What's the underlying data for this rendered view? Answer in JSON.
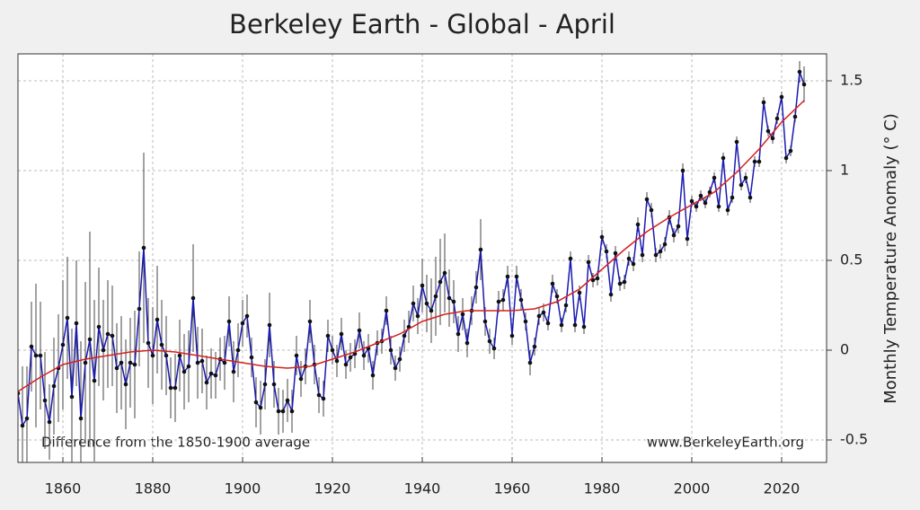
{
  "chart_data": {
    "type": "line",
    "title": "Berkeley Earth - Global - April",
    "y_label": "Monthly Temperature Anomaly (° C)",
    "annotations": [
      "Difference from the 1850-1900 average",
      "www.BerkeleyEarth.org"
    ],
    "xlim": [
      1850,
      2030
    ],
    "ylim": [
      -0.625,
      1.65
    ],
    "xticks": [
      1860,
      1880,
      1900,
      1920,
      1940,
      1960,
      1980,
      2000,
      2020
    ],
    "yticks": [
      -0.5,
      0,
      0.5,
      1,
      1.5
    ],
    "grid": true,
    "series": [
      {
        "color": "#1a1ab0",
        "x": [
          1850,
          1851,
          1852,
          1853,
          1854,
          1855,
          1856,
          1857,
          1858,
          1859,
          1860,
          1861,
          1862,
          1863,
          1864,
          1865,
          1866,
          1867,
          1868,
          1869,
          1870,
          1871,
          1872,
          1873,
          1874,
          1875,
          1876,
          1877,
          1878,
          1879,
          1880,
          1881,
          1882,
          1883,
          1884,
          1885,
          1886,
          1887,
          1888,
          1889,
          1890,
          1891,
          1892,
          1893,
          1894,
          1895,
          1896,
          1897,
          1898,
          1899,
          1900,
          1901,
          1902,
          1903,
          1904,
          1905,
          1906,
          1907,
          1908,
          1909,
          1910,
          1911,
          1912,
          1913,
          1914,
          1915,
          1916,
          1917,
          1918,
          1919,
          1920,
          1921,
          1922,
          1923,
          1924,
          1925,
          1926,
          1927,
          1928,
          1929,
          1930,
          1931,
          1932,
          1933,
          1934,
          1935,
          1936,
          1937,
          1938,
          1939,
          1940,
          1941,
          1942,
          1943,
          1944,
          1945,
          1946,
          1947,
          1948,
          1949,
          1950,
          1951,
          1952,
          1953,
          1954,
          1955,
          1956,
          1957,
          1958,
          1959,
          1960,
          1961,
          1962,
          1963,
          1964,
          1965,
          1966,
          1967,
          1968,
          1969,
          1970,
          1971,
          1972,
          1973,
          1974,
          1975,
          1976,
          1977,
          1978,
          1979,
          1980,
          1981,
          1982,
          1983,
          1984,
          1985,
          1986,
          1987,
          1988,
          1989,
          1990,
          1991,
          1992,
          1993,
          1994,
          1995,
          1996,
          1997,
          1998,
          1999,
          2000,
          2001,
          2002,
          2003,
          2004,
          2005,
          2006,
          2007,
          2008,
          2009,
          2010,
          2011,
          2012,
          2013,
          2014,
          2015,
          2016,
          2017,
          2018,
          2019,
          2020,
          2021,
          2022,
          2023,
          2024,
          2025
        ],
        "values": [
          -0.24,
          -0.42,
          -0.38,
          0.02,
          -0.03,
          -0.03,
          -0.28,
          -0.4,
          -0.2,
          -0.1,
          0.03,
          0.18,
          -0.26,
          0.15,
          -0.38,
          -0.07,
          0.06,
          -0.17,
          0.13,
          0.0,
          0.09,
          0.08,
          -0.1,
          -0.07,
          -0.19,
          -0.07,
          -0.08,
          0.23,
          0.57,
          0.04,
          -0.03,
          0.17,
          0.03,
          -0.03,
          -0.21,
          -0.21,
          -0.03,
          -0.12,
          -0.09,
          0.29,
          -0.07,
          -0.06,
          -0.18,
          -0.13,
          -0.14,
          -0.05,
          -0.07,
          0.16,
          -0.12,
          0.0,
          0.15,
          0.19,
          -0.04,
          -0.29,
          -0.32,
          -0.19,
          0.14,
          -0.19,
          -0.34,
          -0.34,
          -0.28,
          -0.34,
          -0.03,
          -0.16,
          -0.09,
          0.16,
          -0.08,
          -0.25,
          -0.27,
          0.08,
          0.0,
          -0.06,
          0.09,
          -0.08,
          -0.04,
          -0.02,
          0.11,
          -0.03,
          0.01,
          -0.14,
          0.04,
          0.05,
          0.22,
          0.0,
          -0.1,
          -0.05,
          0.08,
          0.13,
          0.26,
          0.19,
          0.36,
          0.26,
          0.22,
          0.3,
          0.38,
          0.43,
          0.29,
          0.27,
          0.09,
          0.2,
          0.04,
          0.22,
          0.35,
          0.56,
          0.16,
          0.05,
          0.01,
          0.27,
          0.28,
          0.41,
          0.08,
          0.41,
          0.28,
          0.16,
          -0.07,
          0.02,
          0.19,
          0.21,
          0.15,
          0.37,
          0.3,
          0.14,
          0.25,
          0.51,
          0.14,
          0.32,
          0.13,
          0.49,
          0.39,
          0.4,
          0.63,
          0.55,
          0.31,
          0.54,
          0.37,
          0.38,
          0.51,
          0.48,
          0.7,
          0.53,
          0.84,
          0.78,
          0.53,
          0.55,
          0.59,
          0.74,
          0.64,
          0.69,
          1.0,
          0.62,
          0.83,
          0.8,
          0.86,
          0.82,
          0.88,
          0.96,
          0.8,
          1.07,
          0.78,
          0.85,
          1.16,
          0.92,
          0.96,
          0.85,
          1.05,
          1.05,
          1.38,
          1.22,
          1.18,
          1.29,
          1.41,
          1.07,
          1.11,
          1.3,
          1.55,
          1.48
        ],
        "errors": [
          0.16,
          0.33,
          0.29,
          0.25,
          0.4,
          0.3,
          0.27,
          0.21,
          0.27,
          0.3,
          0.36,
          0.34,
          0.38,
          0.35,
          0.43,
          0.45,
          0.6,
          0.45,
          0.33,
          0.28,
          0.3,
          0.28,
          0.25,
          0.26,
          0.25,
          0.25,
          0.3,
          0.32,
          0.53,
          0.25,
          0.27,
          0.3,
          0.25,
          0.22,
          0.17,
          0.19,
          0.2,
          0.21,
          0.2,
          0.3,
          0.2,
          0.18,
          0.15,
          0.14,
          0.13,
          0.12,
          0.15,
          0.14,
          0.17,
          0.15,
          0.13,
          0.12,
          0.11,
          0.14,
          0.15,
          0.14,
          0.18,
          0.13,
          0.13,
          0.12,
          0.12,
          0.12,
          0.11,
          0.1,
          0.1,
          0.12,
          0.11,
          0.1,
          0.1,
          0.09,
          0.08,
          0.09,
          0.09,
          0.08,
          0.08,
          0.08,
          0.1,
          0.08,
          0.08,
          0.08,
          0.07,
          0.07,
          0.08,
          0.08,
          0.07,
          0.07,
          0.09,
          0.09,
          0.1,
          0.1,
          0.15,
          0.16,
          0.18,
          0.22,
          0.24,
          0.22,
          0.16,
          0.12,
          0.1,
          0.09,
          0.08,
          0.08,
          0.09,
          0.17,
          0.08,
          0.07,
          0.06,
          0.06,
          0.06,
          0.06,
          0.05,
          0.06,
          0.06,
          0.05,
          0.07,
          0.05,
          0.05,
          0.05,
          0.04,
          0.05,
          0.04,
          0.04,
          0.04,
          0.04,
          0.04,
          0.04,
          0.04,
          0.04,
          0.04,
          0.04,
          0.04,
          0.04,
          0.04,
          0.04,
          0.04,
          0.04,
          0.04,
          0.04,
          0.04,
          0.04,
          0.04,
          0.04,
          0.04,
          0.04,
          0.04,
          0.04,
          0.04,
          0.04,
          0.04,
          0.04,
          0.03,
          0.03,
          0.03,
          0.03,
          0.03,
          0.03,
          0.03,
          0.03,
          0.03,
          0.03,
          0.03,
          0.03,
          0.03,
          0.03,
          0.03,
          0.03,
          0.03,
          0.03,
          0.03,
          0.03,
          0.03,
          0.03,
          0.03,
          0.03,
          0.06,
          0.1
        ]
      },
      {
        "color": "#d42020",
        "x": [
          1850,
          1855,
          1860,
          1865,
          1870,
          1875,
          1880,
          1885,
          1890,
          1895,
          1900,
          1905,
          1910,
          1915,
          1920,
          1925,
          1930,
          1935,
          1940,
          1945,
          1950,
          1955,
          1960,
          1965,
          1970,
          1975,
          1980,
          1985,
          1990,
          1995,
          2000,
          2005,
          2010,
          2015,
          2020,
          2025
        ],
        "values": [
          -0.23,
          -0.15,
          -0.08,
          -0.05,
          -0.03,
          -0.01,
          0.0,
          -0.01,
          -0.03,
          -0.05,
          -0.07,
          -0.09,
          -0.1,
          -0.09,
          -0.05,
          -0.01,
          0.04,
          0.09,
          0.16,
          0.2,
          0.22,
          0.22,
          0.22,
          0.23,
          0.27,
          0.34,
          0.45,
          0.56,
          0.66,
          0.74,
          0.81,
          0.88,
          0.99,
          1.12,
          1.27,
          1.39
        ]
      }
    ]
  }
}
